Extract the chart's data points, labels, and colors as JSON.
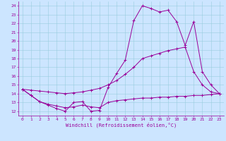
{
  "bg_color": "#cce5ff",
  "grid_color": "#99ccdd",
  "line_color": "#990099",
  "xlim": [
    -0.5,
    23.5
  ],
  "ylim": [
    11.5,
    24.5
  ],
  "xticks": [
    0,
    1,
    2,
    3,
    4,
    5,
    6,
    7,
    8,
    9,
    10,
    11,
    12,
    13,
    14,
    15,
    16,
    17,
    18,
    19,
    20,
    21,
    22,
    23
  ],
  "yticks": [
    12,
    13,
    14,
    15,
    16,
    17,
    18,
    19,
    20,
    21,
    22,
    23,
    24
  ],
  "xlabel": "Windchill (Refroidissement éolien,°C)",
  "line1_x": [
    0,
    1,
    2,
    3,
    4,
    5,
    6,
    7,
    8,
    9,
    10,
    11,
    12,
    13,
    14,
    15,
    16,
    17,
    18,
    19,
    20,
    21,
    22,
    23
  ],
  "line1_y": [
    14.5,
    13.8,
    13.1,
    12.7,
    12.3,
    12.0,
    13.0,
    13.1,
    12.0,
    12.1,
    14.7,
    16.3,
    17.8,
    22.3,
    24.0,
    23.7,
    23.3,
    23.5,
    22.2,
    19.5,
    22.2,
    16.5,
    15.0,
    14.0
  ],
  "line2_x": [
    0,
    1,
    2,
    3,
    4,
    5,
    6,
    7,
    8,
    9,
    10,
    11,
    12,
    13,
    14,
    15,
    16,
    17,
    18,
    19,
    20,
    21,
    22,
    23
  ],
  "line2_y": [
    14.5,
    14.4,
    14.3,
    14.2,
    14.1,
    14.0,
    14.1,
    14.2,
    14.4,
    14.6,
    15.0,
    15.5,
    16.2,
    17.0,
    18.0,
    18.3,
    18.6,
    18.9,
    19.1,
    19.3,
    16.5,
    15.0,
    14.2,
    14.0
  ],
  "line3_x": [
    0,
    1,
    2,
    3,
    4,
    5,
    6,
    7,
    8,
    9,
    10,
    11,
    12,
    13,
    14,
    15,
    16,
    17,
    18,
    19,
    20,
    21,
    22,
    23
  ],
  "line3_y": [
    14.5,
    13.8,
    13.1,
    12.8,
    12.6,
    12.4,
    12.5,
    12.7,
    12.5,
    12.4,
    13.0,
    13.2,
    13.3,
    13.4,
    13.5,
    13.5,
    13.6,
    13.6,
    13.7,
    13.7,
    13.8,
    13.8,
    13.9,
    14.0
  ],
  "tick_fontsize": 4.5,
  "label_fontsize": 5.0
}
